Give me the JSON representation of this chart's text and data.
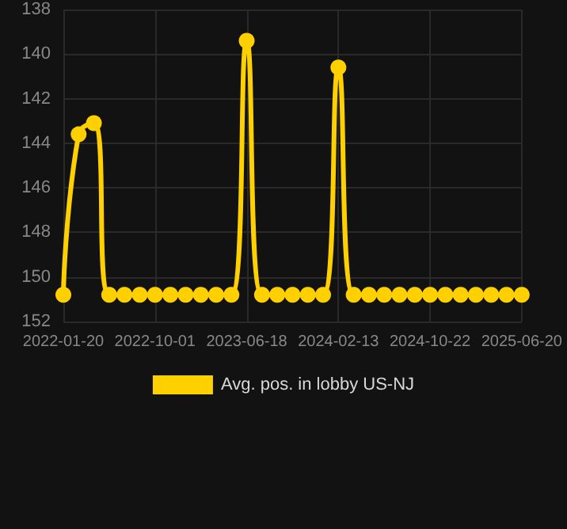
{
  "chart_data": {
    "type": "line",
    "categories": [
      "2022-01-20",
      null,
      null,
      null,
      null,
      null,
      "2022-10-01",
      null,
      null,
      null,
      null,
      null,
      "2023-06-18",
      null,
      null,
      null,
      null,
      null,
      "2024-02-13",
      null,
      null,
      null,
      null,
      null,
      "2024-10-22",
      null,
      null,
      null,
      null,
      null,
      "2025-06-20"
    ],
    "series": [
      {
        "name": "Avg. pos. in lobby US-NJ",
        "color": "#ffd000",
        "values": [
          150.8,
          143.6,
          143.1,
          150.8,
          150.8,
          150.8,
          150.8,
          150.8,
          150.8,
          150.8,
          150.8,
          150.8,
          139.4,
          150.8,
          150.8,
          150.8,
          150.8,
          150.8,
          140.6,
          150.8,
          150.8,
          150.8,
          150.8,
          150.8,
          150.8,
          150.8,
          150.8,
          150.8,
          150.8,
          150.8,
          150.8
        ]
      }
    ],
    "ylim": [
      152,
      138
    ],
    "yticks": [
      138,
      140,
      142,
      144,
      146,
      148,
      150,
      152
    ],
    "grid": true,
    "legend": "bottom",
    "marker": "circle",
    "line_style": "solid"
  }
}
